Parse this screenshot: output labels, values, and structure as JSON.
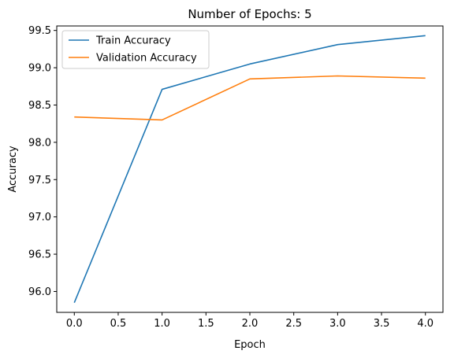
{
  "chart_data": {
    "type": "line",
    "title": "Number of Epochs: 5",
    "xlabel": "Epoch",
    "ylabel": "Accuracy",
    "xlim": [
      -0.2,
      4.2
    ],
    "ylim": [
      95.72,
      99.56
    ],
    "x_ticks": [
      0.0,
      0.5,
      1.0,
      1.5,
      2.0,
      2.5,
      3.0,
      3.5,
      4.0
    ],
    "x_tick_labels": [
      "0.0",
      "0.5",
      "1.0",
      "1.5",
      "2.0",
      "2.5",
      "3.0",
      "3.5",
      "4.0"
    ],
    "y_ticks": [
      96.0,
      96.5,
      97.0,
      97.5,
      98.0,
      98.5,
      99.0,
      99.5
    ],
    "y_tick_labels": [
      "96.0",
      "96.5",
      "97.0",
      "97.5",
      "98.0",
      "98.5",
      "99.0",
      "99.5"
    ],
    "grid": false,
    "legend_position": "upper-left",
    "x": [
      0,
      1,
      2,
      3,
      4
    ],
    "series": [
      {
        "name": "Train Accuracy",
        "color": "#1f77b4",
        "values": [
          95.85,
          98.71,
          99.05,
          99.31,
          99.43
        ]
      },
      {
        "name": "Validation Accuracy",
        "color": "#ff7f0e",
        "values": [
          98.34,
          98.3,
          98.85,
          98.89,
          98.86
        ]
      }
    ]
  }
}
